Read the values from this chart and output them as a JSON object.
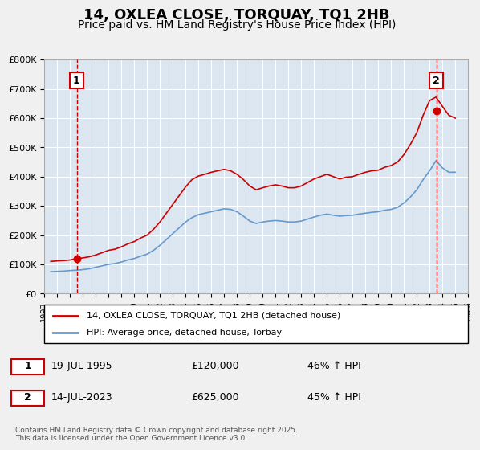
{
  "title": "14, OXLEA CLOSE, TORQUAY, TQ1 2HB",
  "subtitle": "Price paid vs. HM Land Registry's House Price Index (HPI)",
  "title_fontsize": 13,
  "subtitle_fontsize": 10,
  "bg_color": "#dce6f0",
  "plot_bg_color": "#dce6f0",
  "grid_color": "#ffffff",
  "ylim": [
    0,
    800000
  ],
  "yticks": [
    0,
    100000,
    200000,
    300000,
    400000,
    500000,
    600000,
    700000,
    800000
  ],
  "ytick_labels": [
    "£0",
    "£100K",
    "£200K",
    "£300K",
    "£400K",
    "£500K",
    "£600K",
    "£700K",
    "£800K"
  ],
  "xlim_start": 1993.0,
  "xlim_end": 2026.0,
  "sale1_x": 1995.54,
  "sale1_y": 120000,
  "sale2_x": 2023.54,
  "sale2_y": 625000,
  "red_line_color": "#cc0000",
  "blue_line_color": "#6699cc",
  "legend_label_red": "14, OXLEA CLOSE, TORQUAY, TQ1 2HB (detached house)",
  "legend_label_blue": "HPI: Average price, detached house, Torbay",
  "annotation1_label": "1",
  "annotation2_label": "2",
  "table_row1": [
    "1",
    "19-JUL-1995",
    "£120,000",
    "46% ↑ HPI"
  ],
  "table_row2": [
    "2",
    "14-JUL-2023",
    "£625,000",
    "45% ↑ HPI"
  ],
  "footer": "Contains HM Land Registry data © Crown copyright and database right 2025.\nThis data is licensed under the Open Government Licence v3.0.",
  "hpi_data": {
    "years": [
      1993.5,
      1994.0,
      1994.5,
      1995.0,
      1995.5,
      1996.0,
      1996.5,
      1997.0,
      1997.5,
      1998.0,
      1998.5,
      1999.0,
      1999.5,
      2000.0,
      2000.5,
      2001.0,
      2001.5,
      2002.0,
      2002.5,
      2003.0,
      2003.5,
      2004.0,
      2004.5,
      2005.0,
      2005.5,
      2006.0,
      2006.5,
      2007.0,
      2007.5,
      2008.0,
      2008.5,
      2009.0,
      2009.5,
      2010.0,
      2010.5,
      2011.0,
      2011.5,
      2012.0,
      2012.5,
      2013.0,
      2013.5,
      2014.0,
      2014.5,
      2015.0,
      2015.5,
      2016.0,
      2016.5,
      2017.0,
      2017.5,
      2018.0,
      2018.5,
      2019.0,
      2019.5,
      2020.0,
      2020.5,
      2021.0,
      2021.5,
      2022.0,
      2022.5,
      2023.0,
      2023.5,
      2024.0,
      2024.5,
      2025.0
    ],
    "values": [
      75000,
      76000,
      77000,
      79000,
      80000,
      82000,
      85000,
      90000,
      95000,
      100000,
      103000,
      108000,
      115000,
      120000,
      128000,
      135000,
      148000,
      165000,
      185000,
      205000,
      225000,
      245000,
      260000,
      270000,
      275000,
      280000,
      285000,
      290000,
      288000,
      280000,
      265000,
      248000,
      240000,
      245000,
      248000,
      250000,
      248000,
      245000,
      245000,
      248000,
      255000,
      262000,
      268000,
      272000,
      268000,
      265000,
      267000,
      268000,
      272000,
      275000,
      278000,
      280000,
      285000,
      288000,
      295000,
      310000,
      330000,
      355000,
      390000,
      420000,
      455000,
      430000,
      415000,
      415000
    ]
  },
  "hpi_red_data": {
    "years": [
      1993.5,
      1994.0,
      1994.5,
      1995.0,
      1995.5,
      1996.0,
      1996.5,
      1997.0,
      1997.5,
      1998.0,
      1998.5,
      1999.0,
      1999.5,
      2000.0,
      2000.5,
      2001.0,
      2001.5,
      2002.0,
      2002.5,
      2003.0,
      2003.5,
      2004.0,
      2004.5,
      2005.0,
      2005.5,
      2006.0,
      2006.5,
      2007.0,
      2007.5,
      2008.0,
      2008.5,
      2009.0,
      2009.5,
      2010.0,
      2010.5,
      2011.0,
      2011.5,
      2012.0,
      2012.5,
      2013.0,
      2013.5,
      2014.0,
      2014.5,
      2015.0,
      2015.5,
      2016.0,
      2016.5,
      2017.0,
      2017.5,
      2018.0,
      2018.5,
      2019.0,
      2019.5,
      2020.0,
      2020.5,
      2021.0,
      2021.5,
      2022.0,
      2022.5,
      2023.0,
      2023.5,
      2024.0,
      2024.5,
      2025.0
    ],
    "values": [
      110000,
      112000,
      113000,
      115000,
      120000,
      122000,
      126000,
      132000,
      140000,
      148000,
      152000,
      160000,
      170000,
      178000,
      190000,
      200000,
      220000,
      245000,
      275000,
      305000,
      335000,
      365000,
      390000,
      402000,
      408000,
      415000,
      420000,
      425000,
      420000,
      408000,
      390000,
      368000,
      355000,
      362000,
      368000,
      372000,
      368000,
      362000,
      362000,
      368000,
      380000,
      392000,
      400000,
      408000,
      400000,
      392000,
      398000,
      400000,
      408000,
      415000,
      420000,
      422000,
      432000,
      438000,
      450000,
      475000,
      510000,
      550000,
      610000,
      660000,
      672000,
      640000,
      610000,
      600000
    ]
  }
}
